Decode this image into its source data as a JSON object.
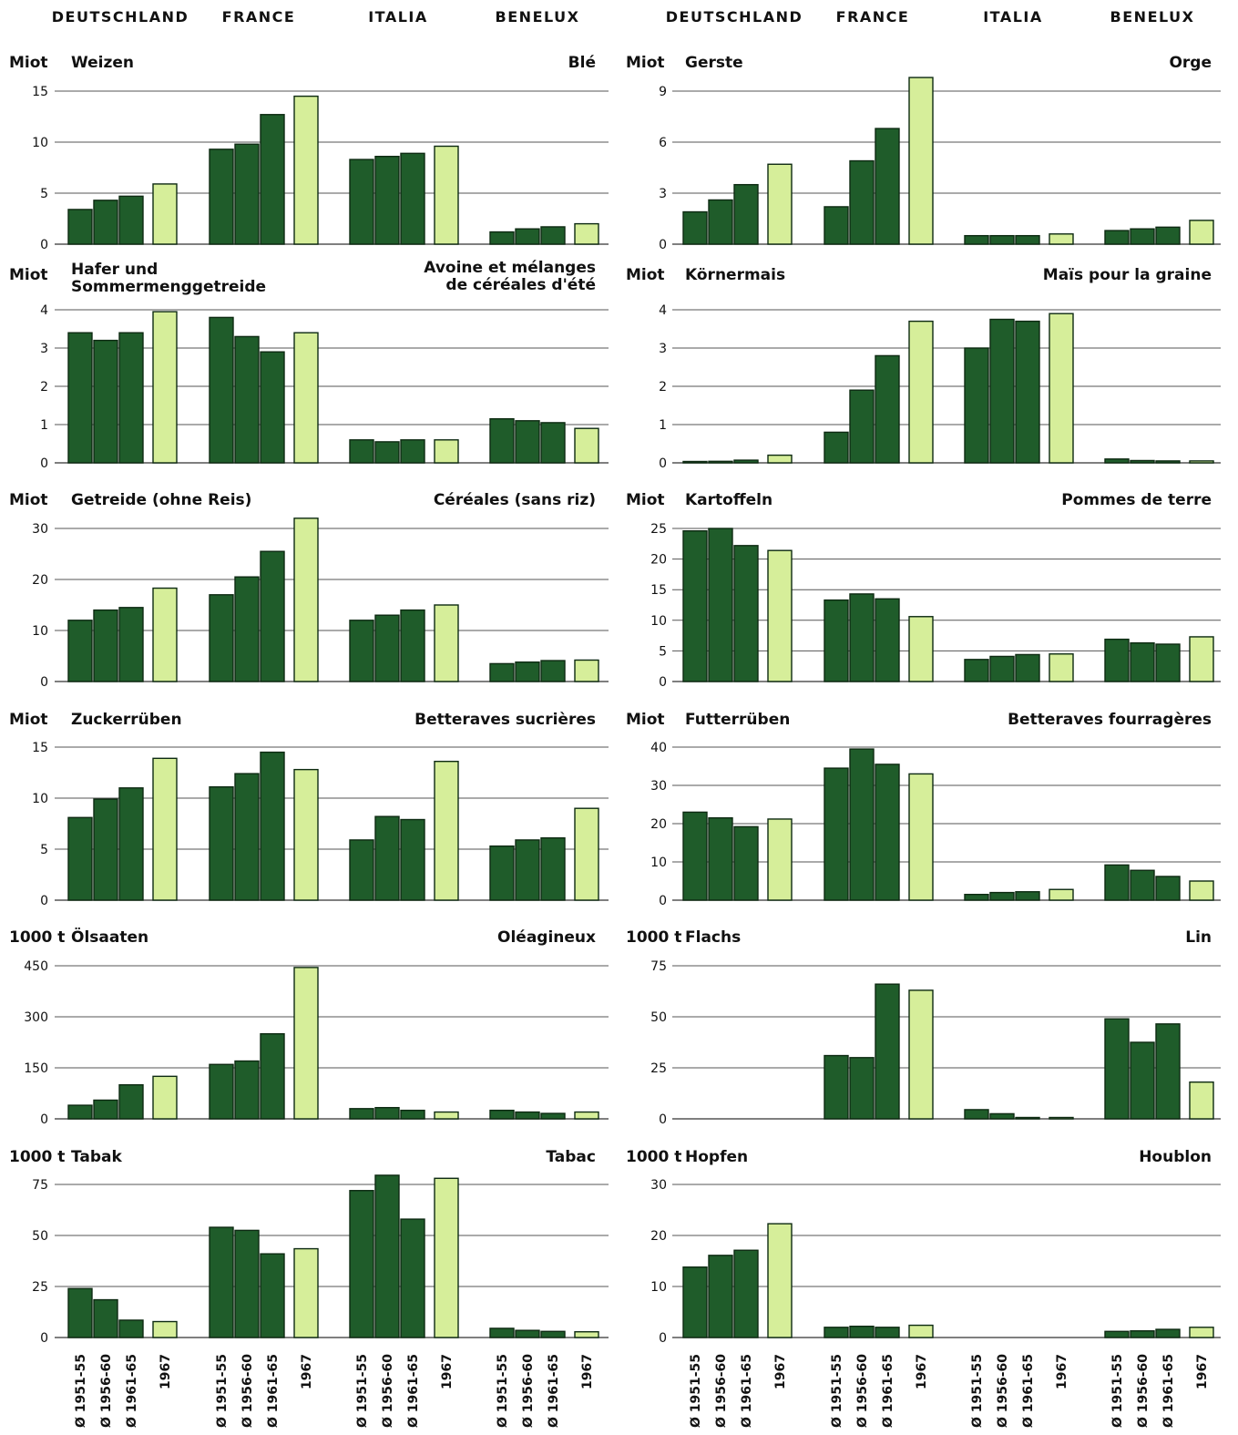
{
  "header": {
    "countries_left": [
      "DEUTSCHLAND",
      "FRANCE",
      "ITALIA",
      "BENELUX"
    ],
    "countries_right": [
      "DEUTSCHLAND",
      "FRANCE",
      "ITALIA",
      "BENELUX"
    ]
  },
  "periods": [
    "Ø 1951-55",
    "Ø 1956-60",
    "Ø 1961-65",
    "1967"
  ],
  "colors": {
    "average_bar": "#1f5c2a",
    "year_bar": "#d6ee9a",
    "gridline": "#555555"
  },
  "chart_data": [
    {
      "type": "bar",
      "unit": "Miot",
      "title_de": "Weizen",
      "title_fr": "Blé",
      "ylim": [
        0,
        15
      ],
      "yticks": [
        0,
        5,
        10,
        15
      ],
      "categories": [
        "DEUTSCHLAND",
        "FRANCE",
        "ITALIA",
        "BENELUX"
      ],
      "series": [
        {
          "name": "Ø 1951-55",
          "values": [
            3.4,
            9.3,
            8.3,
            1.2
          ]
        },
        {
          "name": "Ø 1956-60",
          "values": [
            4.3,
            9.8,
            8.6,
            1.5
          ]
        },
        {
          "name": "Ø 1961-65",
          "values": [
            4.7,
            12.7,
            8.9,
            1.7
          ]
        },
        {
          "name": "1967",
          "values": [
            5.9,
            14.5,
            9.6,
            2.0
          ]
        }
      ]
    },
    {
      "type": "bar",
      "unit": "Miot",
      "title_de": "Gerste",
      "title_fr": "Orge",
      "ylim": [
        0,
        9
      ],
      "yticks": [
        0,
        3,
        6,
        9
      ],
      "categories": [
        "DEUTSCHLAND",
        "FRANCE",
        "ITALIA",
        "BENELUX"
      ],
      "series": [
        {
          "name": "Ø 1951-55",
          "values": [
            1.9,
            2.2,
            0.5,
            0.8
          ]
        },
        {
          "name": "Ø 1956-60",
          "values": [
            2.6,
            4.9,
            0.5,
            0.9
          ]
        },
        {
          "name": "Ø 1961-65",
          "values": [
            3.5,
            6.8,
            0.5,
            1.0
          ]
        },
        {
          "name": "1967",
          "values": [
            4.7,
            9.8,
            0.6,
            1.4
          ]
        }
      ]
    },
    {
      "type": "bar",
      "unit": "Miot",
      "title_de": "Hafer und Sommermenggetreide",
      "title_fr": "Avoine et mélanges de céréales d'été",
      "ylim": [
        0,
        4
      ],
      "yticks": [
        0,
        1,
        2,
        3,
        4
      ],
      "categories": [
        "DEUTSCHLAND",
        "FRANCE",
        "ITALIA",
        "BENELUX"
      ],
      "series": [
        {
          "name": "Ø 1951-55",
          "values": [
            3.4,
            3.8,
            0.6,
            1.15
          ]
        },
        {
          "name": "Ø 1956-60",
          "values": [
            3.2,
            3.3,
            0.55,
            1.1
          ]
        },
        {
          "name": "Ø 1961-65",
          "values": [
            3.4,
            2.9,
            0.6,
            1.05
          ]
        },
        {
          "name": "1967",
          "values": [
            3.95,
            3.4,
            0.6,
            0.9
          ]
        }
      ]
    },
    {
      "type": "bar",
      "unit": "Miot",
      "title_de": "Körnermais",
      "title_fr": "Maïs pour la graine",
      "ylim": [
        0,
        4
      ],
      "yticks": [
        0,
        1,
        2,
        3,
        4
      ],
      "categories": [
        "DEUTSCHLAND",
        "FRANCE",
        "ITALIA",
        "BENELUX"
      ],
      "series": [
        {
          "name": "Ø 1951-55",
          "values": [
            0.03,
            0.8,
            3.0,
            0.1
          ]
        },
        {
          "name": "Ø 1956-60",
          "values": [
            0.04,
            1.9,
            3.75,
            0.06
          ]
        },
        {
          "name": "Ø 1961-65",
          "values": [
            0.07,
            2.8,
            3.7,
            0.05
          ]
        },
        {
          "name": "1967",
          "values": [
            0.2,
            3.7,
            3.9,
            0.05
          ]
        }
      ]
    },
    {
      "type": "bar",
      "unit": "Miot",
      "title_de": "Getreide (ohne Reis)",
      "title_fr": "Céréales (sans riz)",
      "ylim": [
        0,
        30
      ],
      "yticks": [
        0,
        10,
        20,
        30
      ],
      "categories": [
        "DEUTSCHLAND",
        "FRANCE",
        "ITALIA",
        "BENELUX"
      ],
      "series": [
        {
          "name": "Ø 1951-55",
          "values": [
            12,
            17,
            12,
            3.5
          ]
        },
        {
          "name": "Ø 1956-60",
          "values": [
            14,
            20.5,
            13,
            3.8
          ]
        },
        {
          "name": "Ø 1961-65",
          "values": [
            14.5,
            25.5,
            14,
            4.1
          ]
        },
        {
          "name": "1967",
          "values": [
            18.3,
            32,
            15,
            4.2
          ]
        }
      ]
    },
    {
      "type": "bar",
      "unit": "Miot",
      "title_de": "Kartoffeln",
      "title_fr": "Pommes de terre",
      "ylim": [
        0,
        25
      ],
      "yticks": [
        0,
        5,
        10,
        15,
        20,
        25
      ],
      "categories": [
        "DEUTSCHLAND",
        "FRANCE",
        "ITALIA",
        "BENELUX"
      ],
      "series": [
        {
          "name": "Ø 1951-55",
          "values": [
            24.6,
            13.3,
            3.6,
            6.9
          ]
        },
        {
          "name": "Ø 1956-60",
          "values": [
            25,
            14.3,
            4.1,
            6.3
          ]
        },
        {
          "name": "Ø 1961-65",
          "values": [
            22.2,
            13.5,
            4.4,
            6.1
          ]
        },
        {
          "name": "1967",
          "values": [
            21.4,
            10.6,
            4.5,
            7.3
          ]
        }
      ]
    },
    {
      "type": "bar",
      "unit": "Miot",
      "title_de": "Zuckerrüben",
      "title_fr": "Betteraves sucrières",
      "ylim": [
        0,
        15
      ],
      "yticks": [
        0,
        5,
        10,
        15
      ],
      "categories": [
        "DEUTSCHLAND",
        "FRANCE",
        "ITALIA",
        "BENELUX"
      ],
      "series": [
        {
          "name": "Ø 1951-55",
          "values": [
            8.1,
            11.1,
            5.9,
            5.3
          ]
        },
        {
          "name": "Ø 1956-60",
          "values": [
            9.9,
            12.4,
            8.2,
            5.9
          ]
        },
        {
          "name": "Ø 1961-65",
          "values": [
            11.0,
            14.5,
            7.9,
            6.1
          ]
        },
        {
          "name": "1967",
          "values": [
            13.9,
            12.8,
            13.6,
            9.0
          ]
        }
      ]
    },
    {
      "type": "bar",
      "unit": "Miot",
      "title_de": "Futterrüben",
      "title_fr": "Betteraves fourragères",
      "ylim": [
        0,
        40
      ],
      "yticks": [
        0,
        10,
        20,
        30,
        40
      ],
      "categories": [
        "DEUTSCHLAND",
        "FRANCE",
        "ITALIA",
        "BENELUX"
      ],
      "series": [
        {
          "name": "Ø 1951-55",
          "values": [
            23,
            34.5,
            1.5,
            9.2
          ]
        },
        {
          "name": "Ø 1956-60",
          "values": [
            21.5,
            39.5,
            2.0,
            7.8
          ]
        },
        {
          "name": "Ø 1961-65",
          "values": [
            19.2,
            35.5,
            2.2,
            6.2
          ]
        },
        {
          "name": "1967",
          "values": [
            21.2,
            33,
            2.8,
            5.0
          ]
        }
      ]
    },
    {
      "type": "bar",
      "unit": "1000 t",
      "title_de": "Ölsaaten",
      "title_fr": "Oléagineux",
      "ylim": [
        0,
        450
      ],
      "yticks": [
        0,
        150,
        300,
        450
      ],
      "categories": [
        "DEUTSCHLAND",
        "FRANCE",
        "ITALIA",
        "BENELUX"
      ],
      "series": [
        {
          "name": "Ø 1951-55",
          "values": [
            40,
            160,
            30,
            25
          ]
        },
        {
          "name": "Ø 1956-60",
          "values": [
            55,
            170,
            33,
            20
          ]
        },
        {
          "name": "Ø 1961-65",
          "values": [
            100,
            250,
            25,
            16
          ]
        },
        {
          "name": "1967",
          "values": [
            125,
            445,
            20,
            20
          ]
        }
      ]
    },
    {
      "type": "bar",
      "unit": "1000 t",
      "title_de": "Flachs",
      "title_fr": "Lin",
      "ylim": [
        0,
        75
      ],
      "yticks": [
        0,
        25,
        50,
        75
      ],
      "categories": [
        "DEUTSCHLAND",
        "FRANCE",
        "ITALIA",
        "BENELUX"
      ],
      "series": [
        {
          "name": "Ø 1951-55",
          "values": [
            0,
            31,
            4.5,
            49
          ]
        },
        {
          "name": "Ø 1956-60",
          "values": [
            0,
            30,
            2.5,
            37.5
          ]
        },
        {
          "name": "Ø 1961-65",
          "values": [
            0,
            66,
            0.5,
            46.5
          ]
        },
        {
          "name": "1967",
          "values": [
            0,
            63,
            0.3,
            18
          ]
        }
      ]
    },
    {
      "type": "bar",
      "unit": "1000 t",
      "title_de": "Tabak",
      "title_fr": "Tabac",
      "ylim": [
        0,
        75
      ],
      "yticks": [
        0,
        25,
        50,
        75
      ],
      "categories": [
        "DEUTSCHLAND",
        "FRANCE",
        "ITALIA",
        "BENELUX"
      ],
      "series": [
        {
          "name": "Ø 1951-55",
          "values": [
            24,
            54,
            72,
            4.5
          ]
        },
        {
          "name": "Ø 1956-60",
          "values": [
            18.5,
            52.5,
            79.5,
            3.5
          ]
        },
        {
          "name": "Ø 1961-65",
          "values": [
            8.5,
            41,
            58,
            3.0
          ]
        },
        {
          "name": "1967",
          "values": [
            7.8,
            43.5,
            78,
            2.8
          ]
        }
      ]
    },
    {
      "type": "bar",
      "unit": "1000 t",
      "title_de": "Hopfen",
      "title_fr": "Houblon",
      "ylim": [
        0,
        30
      ],
      "yticks": [
        0,
        10,
        20,
        30
      ],
      "categories": [
        "DEUTSCHLAND",
        "FRANCE",
        "ITALIA",
        "BENELUX"
      ],
      "series": [
        {
          "name": "Ø 1951-55",
          "values": [
            13.8,
            2.0,
            0,
            1.2
          ]
        },
        {
          "name": "Ø 1956-60",
          "values": [
            16.1,
            2.2,
            0,
            1.3
          ]
        },
        {
          "name": "Ø 1961-65",
          "values": [
            17.1,
            2.0,
            0,
            1.6
          ]
        },
        {
          "name": "1967",
          "values": [
            22.3,
            2.4,
            0,
            2.0
          ]
        }
      ]
    }
  ]
}
